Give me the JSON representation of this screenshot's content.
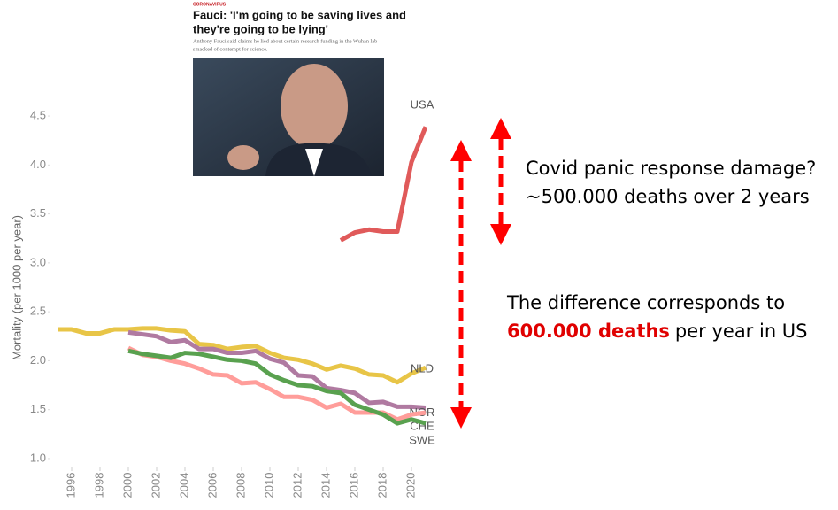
{
  "chart_data": {
    "type": "line",
    "y_label": "Mortality (per 1000 per year)",
    "x": [
      1995,
      1996,
      1997,
      1998,
      1999,
      2000,
      2001,
      2002,
      2003,
      2004,
      2005,
      2006,
      2007,
      2008,
      2009,
      2010,
      2011,
      2012,
      2013,
      2014,
      2015,
      2016,
      2017,
      2018,
      2019,
      2020,
      2021
    ],
    "series": [
      {
        "name": "USA",
        "color": "#e05a5a",
        "values": [
          null,
          null,
          null,
          null,
          null,
          null,
          null,
          null,
          null,
          null,
          null,
          null,
          null,
          null,
          null,
          null,
          null,
          null,
          null,
          null,
          3.23,
          3.31,
          3.34,
          3.32,
          3.32,
          4.03,
          4.39
        ]
      },
      {
        "name": "NLD",
        "color": "#e8c547",
        "values": [
          2.32,
          2.32,
          2.28,
          2.28,
          2.32,
          2.32,
          2.33,
          2.33,
          2.31,
          2.3,
          2.17,
          2.16,
          2.12,
          2.14,
          2.15,
          2.08,
          2.03,
          2.01,
          1.97,
          1.91,
          1.95,
          1.92,
          1.86,
          1.85,
          1.78,
          1.87,
          1.93
        ]
      },
      {
        "name": "NOR",
        "color": "#b07aa1",
        "values": [
          null,
          null,
          null,
          null,
          null,
          2.29,
          2.27,
          2.25,
          2.19,
          2.21,
          2.12,
          2.12,
          2.08,
          2.08,
          2.1,
          2.02,
          1.98,
          1.85,
          1.84,
          1.72,
          1.7,
          1.67,
          1.57,
          1.58,
          1.53,
          1.53,
          1.52
        ]
      },
      {
        "name": "CHE",
        "color": "#ff9d9a",
        "values": [
          null,
          null,
          null,
          null,
          null,
          2.13,
          2.06,
          2.04,
          2.0,
          1.97,
          1.92,
          1.86,
          1.85,
          1.77,
          1.78,
          1.71,
          1.63,
          1.63,
          1.6,
          1.52,
          1.56,
          1.47,
          1.47,
          1.47,
          1.4,
          1.45,
          1.47
        ]
      },
      {
        "name": "SWE",
        "color": "#59a14f",
        "values": [
          null,
          null,
          null,
          null,
          null,
          2.1,
          2.07,
          2.05,
          2.03,
          2.08,
          2.07,
          2.04,
          2.01,
          2.0,
          1.97,
          1.86,
          1.8,
          1.75,
          1.74,
          1.69,
          1.67,
          1.55,
          1.5,
          1.45,
          1.36,
          1.4,
          1.36
        ]
      }
    ],
    "xlim": [
      1994,
      2022
    ],
    "xticks": [
      1996,
      1998,
      2000,
      2002,
      2004,
      2006,
      2008,
      2010,
      2012,
      2014,
      2016,
      2018,
      2020
    ],
    "ylim": [
      0.9,
      4.6
    ],
    "yticks": [
      {
        "value": 1,
        "label": "1.0"
      },
      1.5,
      {
        "value": 2,
        "label": "2.0"
      },
      2.5,
      {
        "value": 3,
        "label": "3.0"
      },
      3.5,
      {
        "value": 4,
        "label": "4.0"
      },
      4.5
    ],
    "grid": false,
    "news": {
      "category": "CORONAVIRUS",
      "headline": [
        "Fauci: 'I'm going to be saving lives and",
        "they're going to be lying'"
      ],
      "summary": [
        "Anthony Fauci said claims he lied about certain research funding in the Wuhan lab",
        "smacked of contempt for science."
      ]
    },
    "annotations": [
      "Covid panic response damage?",
      "~500.000 deaths over 2 years",
      "The difference corresponds to",
      "600.000 deaths",
      "per year in US"
    ]
  }
}
